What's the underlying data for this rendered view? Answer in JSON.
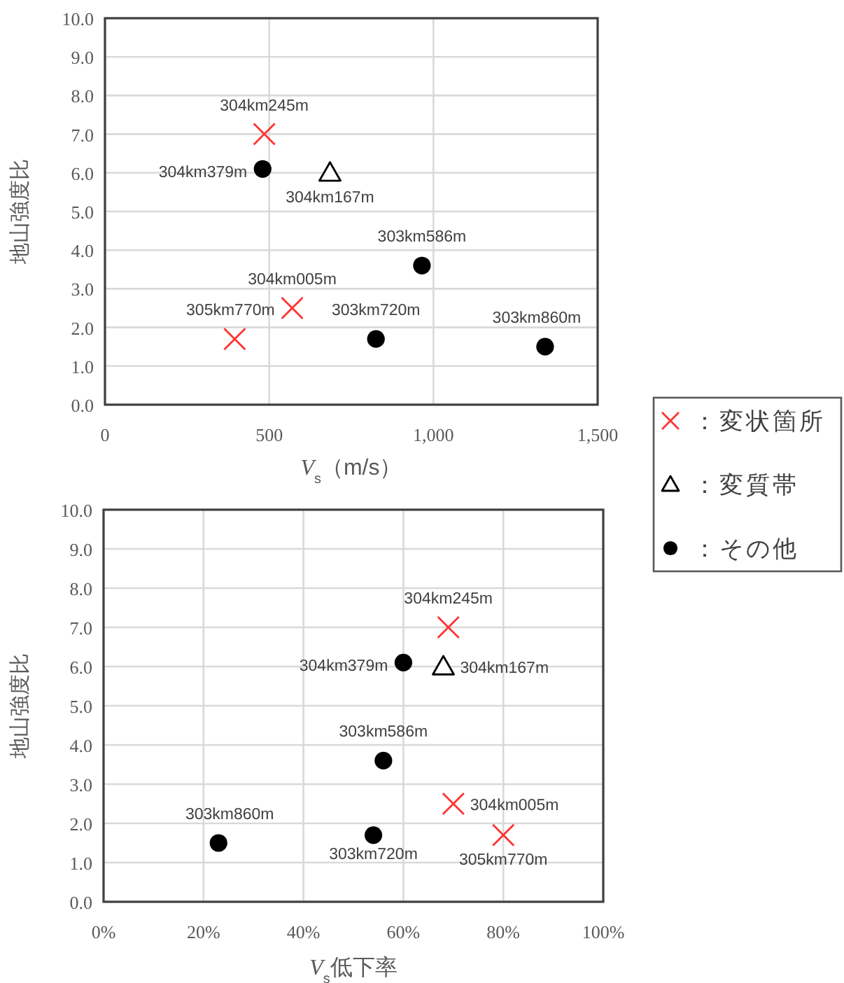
{
  "chart_data": [
    {
      "type": "scatter",
      "xlabel": "*V*$_{s}$（m/s）",
      "ylabel": "地山強度比",
      "xlim": [
        0,
        1500
      ],
      "ylim": [
        0,
        10
      ],
      "xticks": [
        0,
        500,
        {
          "value": 1000,
          "label": "1,000"
        },
        {
          "value": 1500,
          "label": "1,500"
        }
      ],
      "yticks": [
        {
          "value": 0,
          "label": "0.0"
        },
        {
          "value": 1,
          "label": "1.0"
        },
        {
          "value": 2,
          "label": "2.0"
        },
        {
          "value": 3,
          "label": "3.0"
        },
        {
          "value": 4,
          "label": "4.0"
        },
        {
          "value": 5,
          "label": "5.0"
        },
        {
          "value": 6,
          "label": "6.0"
        },
        {
          "value": 7,
          "label": "7.0"
        },
        {
          "value": 8,
          "label": "8.0"
        },
        {
          "value": 9,
          "label": "9.0"
        },
        {
          "value": 10,
          "label": "10.0"
        }
      ],
      "grid": true,
      "legend": "right",
      "series": [
        {
          "name": "：変状箇所",
          "color": "#ff3333",
          "marker": "cross",
          "x": [
            485,
            570,
            395
          ],
          "values": [
            7.0,
            2.5,
            1.7
          ]
        },
        {
          "name": "：変質帯",
          "color": "#000000",
          "marker": "triangle",
          "x": [
            685
          ],
          "values": [
            6.0
          ]
        },
        {
          "name": "：その他",
          "color": "#000000",
          "marker": "circle",
          "x": [
            480,
            965,
            825,
            1340
          ],
          "values": [
            6.1,
            3.6,
            1.7,
            1.5
          ]
        }
      ],
      "annotations": [
        {
          "text": "304km245m",
          "x": 485,
          "y": 7.0
        },
        {
          "text": "304km379m",
          "x": 480,
          "y": 6.1
        },
        {
          "text": "304km167m",
          "x": 685,
          "y": 6.0
        },
        {
          "text": "303km586m",
          "x": 965,
          "y": 3.6
        },
        {
          "text": "304km005m",
          "x": 570,
          "y": 2.5
        },
        {
          "text": "305km770m",
          "x": 395,
          "y": 1.7
        },
        {
          "text": "303km720m",
          "x": 825,
          "y": 1.7
        },
        {
          "text": "303km860m",
          "x": 1340,
          "y": 1.5
        }
      ]
    },
    {
      "type": "scatter",
      "xlabel": "*V*$_{s}$低下率",
      "ylabel": "地山強度比",
      "xlim": [
        0,
        100
      ],
      "ylim": [
        0,
        10
      ],
      "xticks": [
        {
          "value": 0,
          "label": "0%"
        },
        {
          "value": 20,
          "label": "20%"
        },
        {
          "value": 40,
          "label": "40%"
        },
        {
          "value": 60,
          "label": "60%"
        },
        {
          "value": 80,
          "label": "80%"
        },
        {
          "value": 100,
          "label": "100%"
        }
      ],
      "yticks": [
        {
          "value": 0,
          "label": "0.0"
        },
        {
          "value": 1,
          "label": "1.0"
        },
        {
          "value": 2,
          "label": "2.0"
        },
        {
          "value": 3,
          "label": "3.0"
        },
        {
          "value": 4,
          "label": "4.0"
        },
        {
          "value": 5,
          "label": "5.0"
        },
        {
          "value": 6,
          "label": "6.0"
        },
        {
          "value": 7,
          "label": "7.0"
        },
        {
          "value": 8,
          "label": "8.0"
        },
        {
          "value": 9,
          "label": "9.0"
        },
        {
          "value": 10,
          "label": "10.0"
        }
      ],
      "grid": true,
      "series": [
        {
          "color": "#ff3333",
          "marker": "cross",
          "x": [
            69,
            70,
            80
          ],
          "values": [
            7.0,
            2.5,
            1.7
          ]
        },
        {
          "color": "#000000",
          "marker": "triangle",
          "x": [
            68
          ],
          "values": [
            6.0
          ]
        },
        {
          "color": "#000000",
          "marker": "circle",
          "x": [
            60,
            56,
            54,
            23
          ],
          "values": [
            6.1,
            3.6,
            1.7,
            1.5
          ]
        }
      ],
      "annotations": [
        {
          "text": "304km245m",
          "x": 69,
          "y": 7.0
        },
        {
          "text": "304km379m",
          "x": 60,
          "y": 6.1
        },
        {
          "text": "304km167m",
          "x": 68,
          "y": 6.0
        },
        {
          "text": "303km586m",
          "x": 56,
          "y": 3.6
        },
        {
          "text": "304km005m",
          "x": 70,
          "y": 2.5
        },
        {
          "text": "305km770m",
          "x": 80,
          "y": 1.7
        },
        {
          "text": "303km720m",
          "x": 54,
          "y": 1.7
        },
        {
          "text": "303km860m",
          "x": 23,
          "y": 1.5
        }
      ]
    }
  ]
}
